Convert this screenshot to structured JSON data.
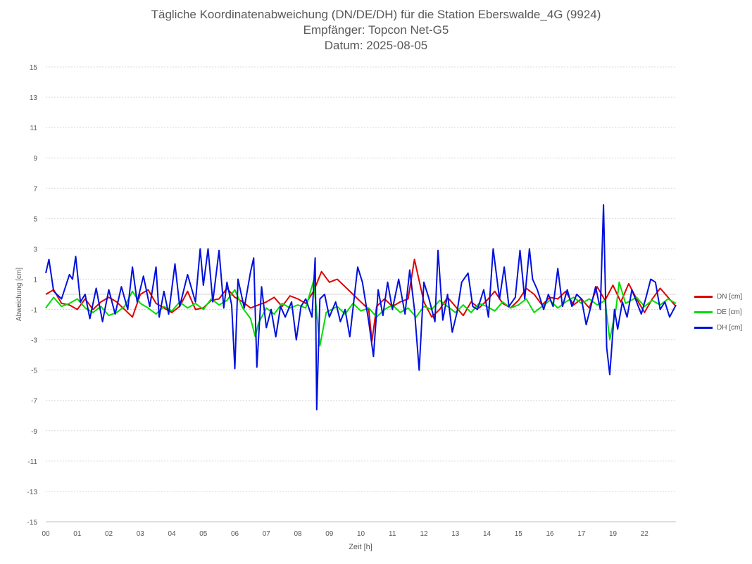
{
  "chart_data": {
    "type": "line",
    "title": "Tägliche Koordinatenabweichung (DN/DE/DH) für die Station Eberswalde_4G (9924)",
    "subtitle_1": "Empfänger: Topcon Net-G5",
    "subtitle_2": "Datum: 2025-08-05",
    "xlabel": "Zeit [h]",
    "ylabel": "Abweichung [cm]",
    "ylim": [
      -15,
      15
    ],
    "yticks": [
      "15",
      "13",
      "11",
      "9",
      "7",
      "5",
      "3",
      "1",
      "-1",
      "-3",
      "-5",
      "-7",
      "-9",
      "-11",
      "-13",
      "-15"
    ],
    "xticks": [
      "00",
      "01",
      "02",
      "03",
      "04",
      "05",
      "06",
      "07",
      "08",
      "09",
      "10",
      "11",
      "12",
      "13",
      "14",
      "15",
      "16",
      "17",
      "19",
      "22"
    ],
    "grid": "horizontal dotted",
    "legend_position": "right",
    "x_unit": "hour",
    "xlim": [
      0,
      20
    ],
    "series": [
      {
        "name": "DN [cm]",
        "color": "#e00000",
        "points": [
          [
            0.0,
            0.0
          ],
          [
            0.25,
            0.3
          ],
          [
            0.5,
            -0.6
          ],
          [
            0.75,
            -0.7
          ],
          [
            1.0,
            -1.0
          ],
          [
            1.25,
            -0.3
          ],
          [
            1.5,
            -1.0
          ],
          [
            1.75,
            -0.5
          ],
          [
            2.0,
            -0.2
          ],
          [
            2.25,
            -0.5
          ],
          [
            2.5,
            -1.0
          ],
          [
            2.75,
            -1.5
          ],
          [
            3.0,
            0.0
          ],
          [
            3.25,
            0.3
          ],
          [
            3.5,
            -0.6
          ],
          [
            3.75,
            -0.9
          ],
          [
            4.0,
            -1.2
          ],
          [
            4.25,
            -0.8
          ],
          [
            4.5,
            0.2
          ],
          [
            4.75,
            -1.0
          ],
          [
            5.0,
            -0.9
          ],
          [
            5.25,
            -0.4
          ],
          [
            5.5,
            -0.3
          ],
          [
            5.75,
            0.4
          ],
          [
            6.0,
            -0.2
          ],
          [
            6.25,
            -0.5
          ],
          [
            6.5,
            -0.9
          ],
          [
            6.75,
            -0.7
          ],
          [
            7.0,
            -0.5
          ],
          [
            7.25,
            -0.2
          ],
          [
            7.5,
            -0.8
          ],
          [
            7.75,
            -0.1
          ],
          [
            8.0,
            -0.3
          ],
          [
            8.25,
            -0.6
          ],
          [
            8.5,
            0.2
          ],
          [
            8.75,
            1.5
          ],
          [
            9.0,
            0.8
          ],
          [
            9.25,
            1.0
          ],
          [
            9.5,
            0.5
          ],
          [
            9.75,
            0.0
          ],
          [
            10.0,
            -0.5
          ],
          [
            10.25,
            -1.0
          ],
          [
            10.35,
            -3.1
          ],
          [
            10.5,
            -0.8
          ],
          [
            10.75,
            -0.3
          ],
          [
            11.0,
            -0.8
          ],
          [
            11.25,
            -0.5
          ],
          [
            11.5,
            -0.3
          ],
          [
            11.7,
            2.3
          ],
          [
            12.0,
            -0.5
          ],
          [
            12.25,
            -1.5
          ],
          [
            12.5,
            -1.0
          ],
          [
            12.75,
            -0.2
          ],
          [
            13.0,
            -0.8
          ],
          [
            13.25,
            -1.4
          ],
          [
            13.5,
            -0.5
          ],
          [
            13.75,
            -0.9
          ],
          [
            14.0,
            -0.4
          ],
          [
            14.25,
            0.2
          ],
          [
            14.5,
            -0.6
          ],
          [
            14.75,
            -0.9
          ],
          [
            15.0,
            -0.4
          ],
          [
            15.25,
            0.4
          ],
          [
            15.5,
            0.0
          ],
          [
            15.75,
            -0.7
          ],
          [
            16.0,
            -0.2
          ],
          [
            16.25,
            -0.3
          ],
          [
            16.5,
            0.2
          ],
          [
            16.75,
            -0.7
          ],
          [
            17.0,
            -0.3
          ],
          [
            17.25,
            -0.9
          ],
          [
            17.5,
            0.5
          ],
          [
            17.75,
            -0.4
          ],
          [
            18.0,
            0.6
          ],
          [
            18.25,
            -0.5
          ],
          [
            18.5,
            0.7
          ],
          [
            18.75,
            -0.3
          ],
          [
            19.0,
            -1.2
          ],
          [
            19.25,
            -0.3
          ],
          [
            19.5,
            0.4
          ],
          [
            19.75,
            -0.2
          ],
          [
            20.0,
            -0.8
          ]
        ]
      },
      {
        "name": "DE [cm]",
        "color": "#00dd00",
        "points": [
          [
            0.0,
            -0.9
          ],
          [
            0.25,
            -0.2
          ],
          [
            0.5,
            -0.8
          ],
          [
            0.75,
            -0.6
          ],
          [
            1.0,
            -0.3
          ],
          [
            1.25,
            -0.9
          ],
          [
            1.5,
            -1.2
          ],
          [
            1.75,
            -0.8
          ],
          [
            2.0,
            -1.4
          ],
          [
            2.25,
            -1.2
          ],
          [
            2.5,
            -0.8
          ],
          [
            2.75,
            0.2
          ],
          [
            3.0,
            -0.6
          ],
          [
            3.25,
            -0.9
          ],
          [
            3.5,
            -1.3
          ],
          [
            3.75,
            -0.8
          ],
          [
            4.0,
            -1.1
          ],
          [
            4.25,
            -0.5
          ],
          [
            4.5,
            -0.9
          ],
          [
            4.75,
            -0.6
          ],
          [
            5.0,
            -1.0
          ],
          [
            5.25,
            -0.3
          ],
          [
            5.5,
            -0.7
          ],
          [
            5.75,
            -0.4
          ],
          [
            6.0,
            0.3
          ],
          [
            6.25,
            -0.9
          ],
          [
            6.5,
            -1.6
          ],
          [
            6.65,
            -2.8
          ],
          [
            6.75,
            -1.9
          ],
          [
            7.0,
            -0.9
          ],
          [
            7.25,
            -1.3
          ],
          [
            7.5,
            -0.6
          ],
          [
            7.75,
            -0.9
          ],
          [
            8.0,
            -0.7
          ],
          [
            8.25,
            -0.9
          ],
          [
            8.5,
            0.9
          ],
          [
            8.7,
            -3.4
          ],
          [
            8.9,
            -1.2
          ],
          [
            9.25,
            -0.8
          ],
          [
            9.5,
            -1.3
          ],
          [
            9.75,
            -0.6
          ],
          [
            10.0,
            -1.1
          ],
          [
            10.25,
            -0.9
          ],
          [
            10.5,
            -1.5
          ],
          [
            10.75,
            -1.0
          ],
          [
            11.0,
            -0.7
          ],
          [
            11.25,
            -1.2
          ],
          [
            11.5,
            -0.9
          ],
          [
            11.75,
            -1.5
          ],
          [
            12.0,
            -0.8
          ],
          [
            12.25,
            -1.0
          ],
          [
            12.5,
            -0.4
          ],
          [
            12.75,
            -0.8
          ],
          [
            13.0,
            -1.2
          ],
          [
            13.25,
            -0.7
          ],
          [
            13.5,
            -1.2
          ],
          [
            13.75,
            -0.6
          ],
          [
            14.0,
            -0.8
          ],
          [
            14.25,
            -1.1
          ],
          [
            14.5,
            -0.5
          ],
          [
            14.75,
            -0.9
          ],
          [
            15.0,
            -0.7
          ],
          [
            15.25,
            -0.3
          ],
          [
            15.5,
            -1.2
          ],
          [
            15.75,
            -0.8
          ],
          [
            16.0,
            -0.4
          ],
          [
            16.25,
            -0.9
          ],
          [
            16.5,
            -0.5
          ],
          [
            16.75,
            -0.2
          ],
          [
            17.0,
            -0.6
          ],
          [
            17.25,
            -0.3
          ],
          [
            17.5,
            -0.7
          ],
          [
            17.75,
            -0.4
          ],
          [
            17.9,
            -3.0
          ],
          [
            18.1,
            -0.9
          ],
          [
            18.2,
            0.8
          ],
          [
            18.4,
            -0.6
          ],
          [
            18.75,
            -0.2
          ],
          [
            19.0,
            -0.8
          ],
          [
            19.25,
            -0.4
          ],
          [
            19.5,
            -0.7
          ],
          [
            19.75,
            -0.3
          ],
          [
            20.0,
            -0.6
          ]
        ]
      },
      {
        "name": "DH [cm]",
        "color": "#0010dd",
        "points": [
          [
            0.0,
            1.4
          ],
          [
            0.1,
            2.3
          ],
          [
            0.25,
            0.2
          ],
          [
            0.5,
            -0.3
          ],
          [
            0.75,
            1.3
          ],
          [
            0.85,
            1.0
          ],
          [
            0.95,
            2.5
          ],
          [
            1.1,
            -0.5
          ],
          [
            1.25,
            0.0
          ],
          [
            1.4,
            -1.6
          ],
          [
            1.6,
            0.4
          ],
          [
            1.8,
            -1.8
          ],
          [
            2.0,
            0.3
          ],
          [
            2.2,
            -1.3
          ],
          [
            2.4,
            0.5
          ],
          [
            2.6,
            -1.0
          ],
          [
            2.75,
            1.8
          ],
          [
            2.9,
            -0.5
          ],
          [
            3.1,
            1.2
          ],
          [
            3.3,
            -0.8
          ],
          [
            3.5,
            1.8
          ],
          [
            3.6,
            -1.5
          ],
          [
            3.75,
            0.2
          ],
          [
            3.9,
            -1.3
          ],
          [
            4.1,
            2.0
          ],
          [
            4.25,
            -0.8
          ],
          [
            4.5,
            1.3
          ],
          [
            4.75,
            -0.5
          ],
          [
            4.9,
            3.0
          ],
          [
            5.0,
            0.6
          ],
          [
            5.15,
            3.0
          ],
          [
            5.3,
            -0.5
          ],
          [
            5.5,
            2.9
          ],
          [
            5.65,
            -0.9
          ],
          [
            5.75,
            0.8
          ],
          [
            5.9,
            -0.7
          ],
          [
            6.0,
            -4.9
          ],
          [
            6.1,
            1.0
          ],
          [
            6.3,
            -0.9
          ],
          [
            6.5,
            1.5
          ],
          [
            6.6,
            2.4
          ],
          [
            6.7,
            -4.8
          ],
          [
            6.85,
            0.5
          ],
          [
            7.0,
            -2.2
          ],
          [
            7.15,
            -1.0
          ],
          [
            7.3,
            -2.8
          ],
          [
            7.45,
            -0.8
          ],
          [
            7.6,
            -1.5
          ],
          [
            7.8,
            -0.5
          ],
          [
            7.95,
            -3.0
          ],
          [
            8.1,
            -0.8
          ],
          [
            8.25,
            -0.3
          ],
          [
            8.45,
            -1.5
          ],
          [
            8.55,
            2.4
          ],
          [
            8.6,
            -7.6
          ],
          [
            8.7,
            -0.3
          ],
          [
            8.85,
            0.0
          ],
          [
            9.0,
            -1.5
          ],
          [
            9.2,
            -0.5
          ],
          [
            9.35,
            -1.8
          ],
          [
            9.5,
            -1.0
          ],
          [
            9.65,
            -2.8
          ],
          [
            9.8,
            0.0
          ],
          [
            9.9,
            1.8
          ],
          [
            10.05,
            0.8
          ],
          [
            10.25,
            -1.8
          ],
          [
            10.4,
            -4.1
          ],
          [
            10.55,
            0.3
          ],
          [
            10.7,
            -1.4
          ],
          [
            10.85,
            0.8
          ],
          [
            11.0,
            -1.0
          ],
          [
            11.2,
            1.0
          ],
          [
            11.4,
            -1.3
          ],
          [
            11.55,
            1.6
          ],
          [
            11.7,
            -1.0
          ],
          [
            11.85,
            -5.0
          ],
          [
            12.0,
            0.8
          ],
          [
            12.15,
            -0.2
          ],
          [
            12.35,
            -1.8
          ],
          [
            12.45,
            2.9
          ],
          [
            12.6,
            -1.7
          ],
          [
            12.75,
            0.0
          ],
          [
            12.9,
            -2.5
          ],
          [
            13.05,
            -1.2
          ],
          [
            13.2,
            0.8
          ],
          [
            13.4,
            1.4
          ],
          [
            13.55,
            -0.8
          ],
          [
            13.7,
            -1.0
          ],
          [
            13.9,
            0.3
          ],
          [
            14.05,
            -1.5
          ],
          [
            14.2,
            3.0
          ],
          [
            14.4,
            -0.3
          ],
          [
            14.55,
            1.8
          ],
          [
            14.7,
            -0.8
          ],
          [
            14.9,
            -0.2
          ],
          [
            15.05,
            2.9
          ],
          [
            15.2,
            -0.3
          ],
          [
            15.35,
            3.0
          ],
          [
            15.45,
            1.0
          ],
          [
            15.6,
            0.3
          ],
          [
            15.8,
            -1.0
          ],
          [
            15.95,
            0.0
          ],
          [
            16.1,
            -0.8
          ],
          [
            16.25,
            1.7
          ],
          [
            16.4,
            -0.8
          ],
          [
            16.55,
            0.3
          ],
          [
            16.7,
            -0.8
          ],
          [
            16.85,
            0.0
          ],
          [
            17.0,
            -0.3
          ],
          [
            17.15,
            -2.0
          ],
          [
            17.3,
            -0.8
          ],
          [
            17.45,
            0.5
          ],
          [
            17.6,
            -1.0
          ],
          [
            17.7,
            5.9
          ],
          [
            17.8,
            -3.5
          ],
          [
            17.9,
            -5.3
          ],
          [
            18.05,
            -1.0
          ],
          [
            18.15,
            -2.3
          ],
          [
            18.3,
            -0.5
          ],
          [
            18.45,
            -1.5
          ],
          [
            18.6,
            0.3
          ],
          [
            18.75,
            -0.5
          ],
          [
            18.9,
            -1.3
          ],
          [
            19.05,
            -0.2
          ],
          [
            19.2,
            1.0
          ],
          [
            19.35,
            0.8
          ],
          [
            19.5,
            -1.0
          ],
          [
            19.65,
            -0.5
          ],
          [
            19.8,
            -1.5
          ],
          [
            20.0,
            -0.7
          ]
        ]
      }
    ]
  }
}
